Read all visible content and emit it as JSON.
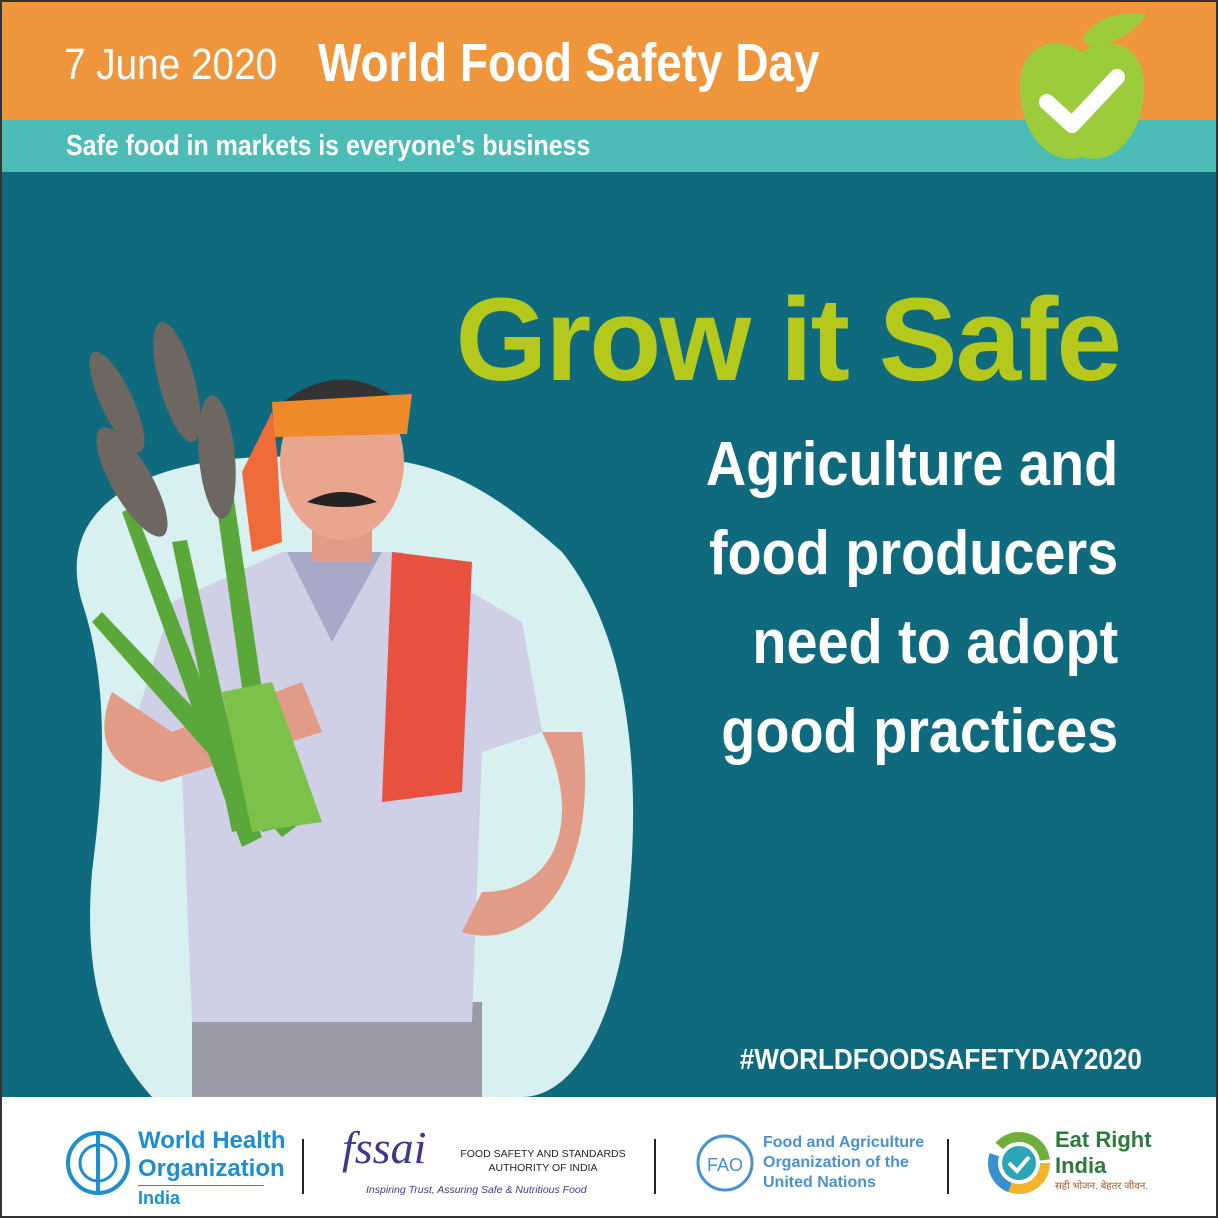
{
  "header": {
    "date": "7 June 2020",
    "title": "World Food Safety Day",
    "tagline": "Safe food in markets is everyone's business"
  },
  "main": {
    "headline": "Grow it Safe",
    "message_lines": [
      "Agriculture and",
      "food producers",
      "need to adopt",
      "good practices"
    ],
    "hashtag": "#WORLDFOODSAFETYDAY2020"
  },
  "footer": {
    "who": {
      "line1": "World Health",
      "line2": "Organization",
      "line3": "India"
    },
    "fssai": {
      "logo": "fssai",
      "line1": "FOOD SAFETY AND STANDARDS",
      "line2": "AUTHORITY OF INDIA",
      "slogan": "Inspiring Trust, Assuring Safe & Nutritious Food"
    },
    "fao": {
      "line1": "Food and Agriculture",
      "line2": "Organization of the",
      "line3": "United Nations"
    },
    "eatright": {
      "line1": "Eat Right",
      "line2": "India",
      "slogan": "सही भोजन. बेहतर जीवन."
    }
  },
  "colors": {
    "orange": "#ef963d",
    "teal_strip": "#4bbcb6",
    "main_bg": "#0f6a7e",
    "headline": "#b4c91b",
    "apple": "#9ccc3c"
  }
}
